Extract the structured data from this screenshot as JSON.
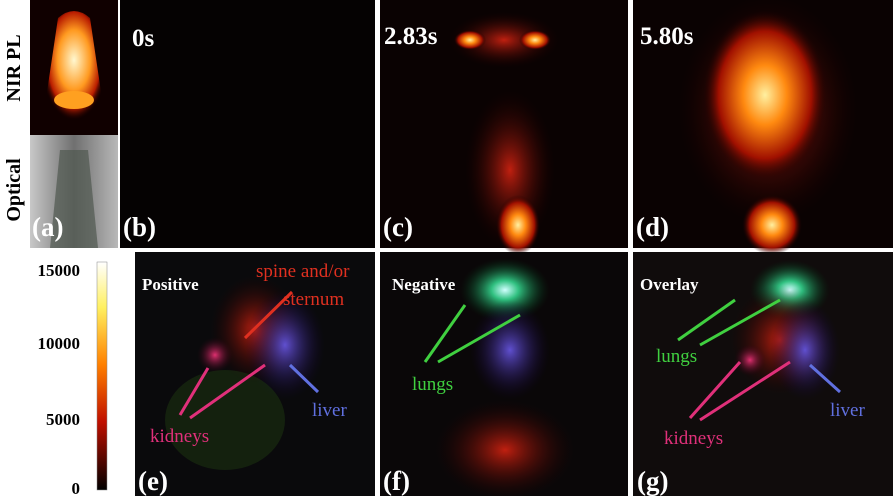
{
  "side_labels": [
    "NIR PL",
    "Optical"
  ],
  "panels": [
    {
      "label": "(a)"
    },
    {
      "label": "(b)",
      "time": "0s"
    },
    {
      "label": "(c)",
      "time": "2.83s"
    },
    {
      "label": "(d)",
      "time": "5.80s"
    },
    {
      "label": "(e)",
      "title": "Positive",
      "annotations": [
        "spine and/or",
        "sternum",
        "kidneys",
        "liver"
      ]
    },
    {
      "label": "(f)",
      "title": "Negative",
      "annotations": [
        "lungs"
      ]
    },
    {
      "label": "(g)",
      "title": "Overlay",
      "annotations": [
        "lungs",
        "kidneys",
        "liver"
      ]
    }
  ],
  "colorbar": {
    "ticks": [
      15000,
      10000,
      5000,
      0
    ]
  }
}
